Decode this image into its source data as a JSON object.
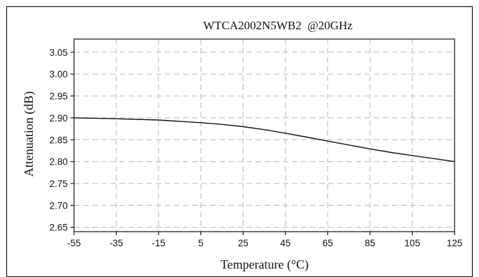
{
  "chart_data": {
    "type": "line",
    "title": "WTCA2002N5WB2  @20GHz",
    "xlabel": "Temperature (°C)",
    "ylabel": "Attenuation (dB)",
    "xlim": [
      -55,
      125
    ],
    "ylim": [
      2.64,
      3.08
    ],
    "x_ticks": [
      -55,
      -35,
      -15,
      5,
      25,
      45,
      65,
      85,
      105,
      125
    ],
    "y_ticks": [
      2.65,
      2.7,
      2.75,
      2.8,
      2.85,
      2.9,
      2.95,
      3.0,
      3.05
    ],
    "x_tick_labels": [
      "-55",
      "-35",
      "-15",
      "5",
      "25",
      "45",
      "65",
      "85",
      "105",
      "125"
    ],
    "y_tick_labels": [
      "2.65",
      "2.70",
      "2.75",
      "2.80",
      "2.85",
      "2.90",
      "2.95",
      "3.00",
      "3.05"
    ],
    "grid": true,
    "legend": "none",
    "series": [
      {
        "x": [
          -55,
          -35,
          -15,
          5,
          15,
          25,
          35,
          45,
          55,
          65,
          75,
          85,
          95,
          105,
          115,
          125
        ],
        "y": [
          2.9,
          2.898,
          2.895,
          2.889,
          2.885,
          2.88,
          2.873,
          2.865,
          2.856,
          2.847,
          2.838,
          2.829,
          2.821,
          2.814,
          2.807,
          2.8
        ]
      }
    ],
    "colors": {
      "line": "#111111",
      "grid": "#c4c4c4",
      "frame": "#111111",
      "background": "#ffffff"
    }
  }
}
